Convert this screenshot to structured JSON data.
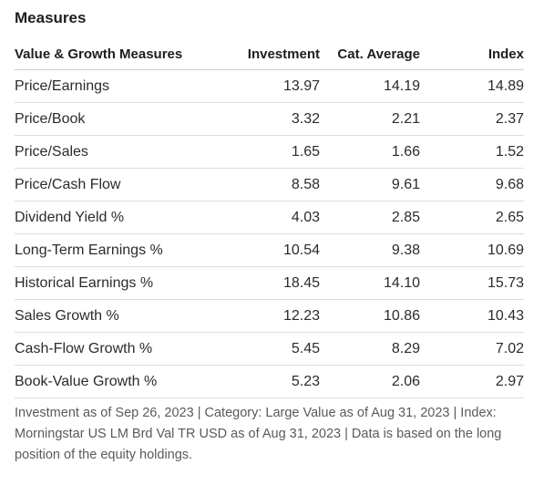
{
  "section": {
    "title": "Measures"
  },
  "table": {
    "headers": [
      "Value & Growth Measures",
      "Investment",
      "Cat. Average",
      "Index"
    ],
    "rows": [
      {
        "label": "Price/Earnings",
        "investment": "13.97",
        "cat_average": "14.19",
        "index": "14.89"
      },
      {
        "label": "Price/Book",
        "investment": "3.32",
        "cat_average": "2.21",
        "index": "2.37"
      },
      {
        "label": "Price/Sales",
        "investment": "1.65",
        "cat_average": "1.66",
        "index": "1.52"
      },
      {
        "label": "Price/Cash Flow",
        "investment": "8.58",
        "cat_average": "9.61",
        "index": "9.68"
      },
      {
        "label": "Dividend Yield %",
        "investment": "4.03",
        "cat_average": "2.85",
        "index": "2.65"
      },
      {
        "label": "Long-Term Earnings %",
        "investment": "10.54",
        "cat_average": "9.38",
        "index": "10.69"
      },
      {
        "label": "Historical Earnings %",
        "investment": "18.45",
        "cat_average": "14.10",
        "index": "15.73"
      },
      {
        "label": "Sales Growth %",
        "investment": "12.23",
        "cat_average": "10.86",
        "index": "10.43"
      },
      {
        "label": "Cash-Flow Growth %",
        "investment": "5.45",
        "cat_average": "8.29",
        "index": "7.02"
      },
      {
        "label": "Book-Value Growth %",
        "investment": "5.23",
        "cat_average": "2.06",
        "index": "2.97"
      }
    ]
  },
  "footnote": "Investment as of Sep 26, 2023 | Category: Large Value as of Aug 31, 2023 | Index: Morningstar US LM Brd Val TR USD as of Aug 31, 2023 | Data is based on the long position of the equity holdings."
}
